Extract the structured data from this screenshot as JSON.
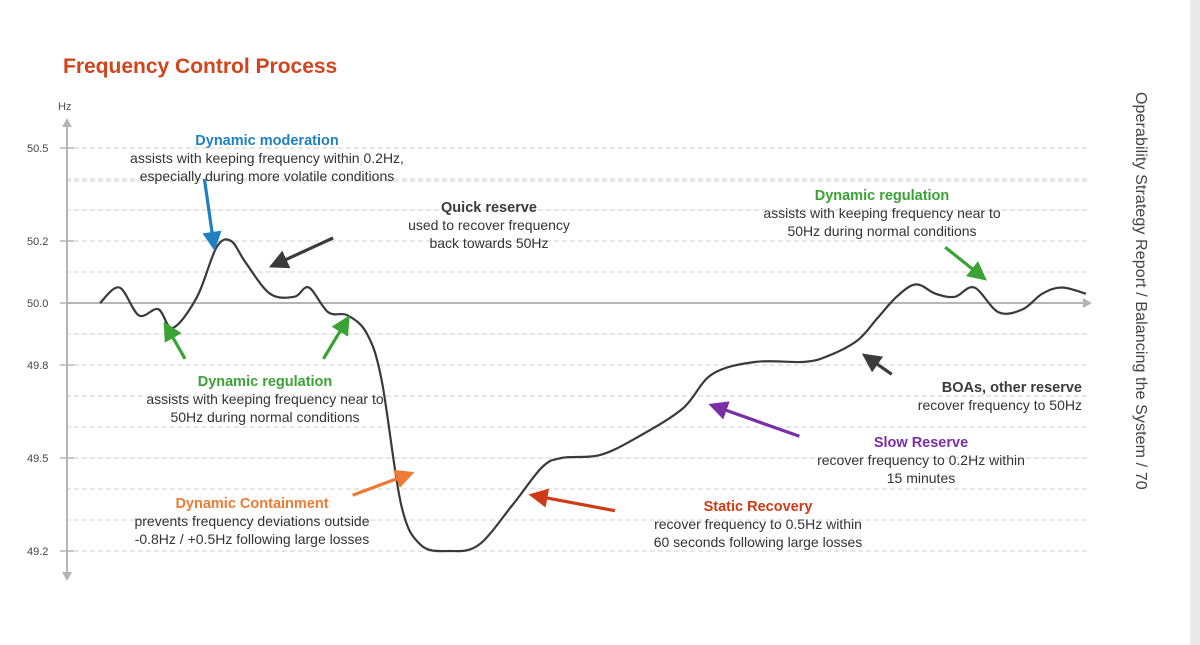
{
  "side_label": "Operability Strategy Report  /  Balancing the System  /  70",
  "chart_data": {
    "type": "line",
    "title": "Frequency Control Process",
    "ylabel": "Hz",
    "xlabel": "",
    "yticks": [
      "50.5",
      "50.2",
      "50.0",
      "49.8",
      "49.5",
      "49.2"
    ],
    "ylim": [
      49.12,
      50.56
    ],
    "grid": true,
    "colors": {
      "title": "#d2441b",
      "line": "#3a3a3a",
      "axis": "#b5b5b5",
      "grid": "#cfcfcf",
      "moderation": "#1e7fc1",
      "regulation": "#3aa335",
      "containment": "#ee7a34",
      "static": "#cf3b14",
      "slow": "#7a2fa6",
      "dark": "#3b3b3b",
      "text": "#333333"
    },
    "series": [
      {
        "values": [
          [
            0,
            50.0
          ],
          [
            4,
            50.05
          ],
          [
            8,
            49.96
          ],
          [
            12,
            49.98
          ],
          [
            15,
            49.92
          ],
          [
            20,
            50.02
          ],
          [
            24,
            50.18
          ],
          [
            27,
            50.2
          ],
          [
            30,
            50.13
          ],
          [
            35,
            50.03
          ],
          [
            40,
            50.02
          ],
          [
            43,
            50.05
          ],
          [
            47,
            49.97
          ],
          [
            51,
            49.96
          ],
          [
            55,
            49.9
          ],
          [
            58,
            49.75
          ],
          [
            62,
            49.35
          ],
          [
            66,
            49.22
          ],
          [
            72,
            49.2
          ],
          [
            78,
            49.22
          ],
          [
            85,
            49.35
          ],
          [
            91,
            49.47
          ],
          [
            95,
            49.5
          ],
          [
            103,
            49.51
          ],
          [
            111,
            49.57
          ],
          [
            120,
            49.66
          ],
          [
            126,
            49.77
          ],
          [
            135,
            49.81
          ],
          [
            145,
            49.81
          ],
          [
            150,
            49.83
          ],
          [
            156,
            49.88
          ],
          [
            160,
            49.95
          ],
          [
            164,
            50.02
          ],
          [
            168,
            50.06
          ],
          [
            172,
            50.03
          ],
          [
            176,
            50.02
          ],
          [
            180,
            50.05
          ],
          [
            185,
            49.97
          ],
          [
            190,
            49.98
          ],
          [
            194,
            50.03
          ],
          [
            198,
            50.05
          ],
          [
            203,
            50.03
          ]
        ]
      }
    ],
    "annotations": [
      {
        "id": "dynamic-moderation",
        "title": "Dynamic moderation",
        "lines": [
          "assists with keeping frequency within 0.2Hz,",
          "especially during more volatile conditions"
        ],
        "color_key": "moderation",
        "arrow_from": [
          21.5,
          50.4
        ],
        "arrow_to": [
          23.5,
          50.18
        ]
      },
      {
        "id": "quick-reserve",
        "title": "Quick reserve",
        "lines": [
          "used to  recover frequency",
          "back towards 50Hz"
        ],
        "color_key": "dark",
        "arrow_from": [
          48,
          50.21
        ],
        "arrow_to": [
          35.5,
          50.12
        ]
      },
      {
        "id": "dynamic-regulation-top",
        "title": "Dynamic regulation",
        "lines": [
          "assists with keeping frequency near to",
          "50Hz during normal conditions"
        ],
        "color_key": "regulation",
        "arrow_from": [
          174,
          50.18
        ],
        "arrow_to": [
          182,
          50.08
        ]
      },
      {
        "id": "dynamic-regulation-bottom",
        "title": "Dynamic regulation",
        "lines": [
          "assists with keeping frequency near to",
          "50Hz during normal conditions"
        ],
        "color_key": "regulation",
        "arrow_from": [
          17.5,
          49.82
        ],
        "arrow_to": [
          13.5,
          49.93
        ],
        "arrow2_from": [
          46,
          49.82
        ],
        "arrow2_to": [
          51,
          49.95
        ]
      },
      {
        "id": "boas",
        "title": "BOAs, other reserve",
        "lines": [
          "recover frequency to 50Hz"
        ],
        "color_key": "dark",
        "arrow_from": [
          163,
          49.77
        ],
        "arrow_to": [
          157.5,
          49.83
        ]
      },
      {
        "id": "slow-reserve",
        "title": "Slow Reserve",
        "lines": [
          "recover frequency to 0.2Hz within",
          "15 minutes"
        ],
        "color_key": "slow",
        "arrow_from": [
          144,
          49.57
        ],
        "arrow_to": [
          126,
          49.67
        ]
      },
      {
        "id": "static-recovery",
        "title": "Static Recovery",
        "lines": [
          "recover frequency to 0.5Hz within",
          "60 seconds following large losses"
        ],
        "color_key": "static",
        "arrow_from": [
          106,
          49.33
        ],
        "arrow_to": [
          89,
          49.38
        ]
      },
      {
        "id": "dynamic-containment",
        "title": "Dynamic Containment",
        "lines": [
          "prevents frequency deviations outside",
          "-0.8Hz / +0.5Hz following large losses"
        ],
        "color_key": "containment",
        "arrow_from": [
          52,
          49.38
        ],
        "arrow_to": [
          64,
          49.45
        ]
      }
    ]
  }
}
